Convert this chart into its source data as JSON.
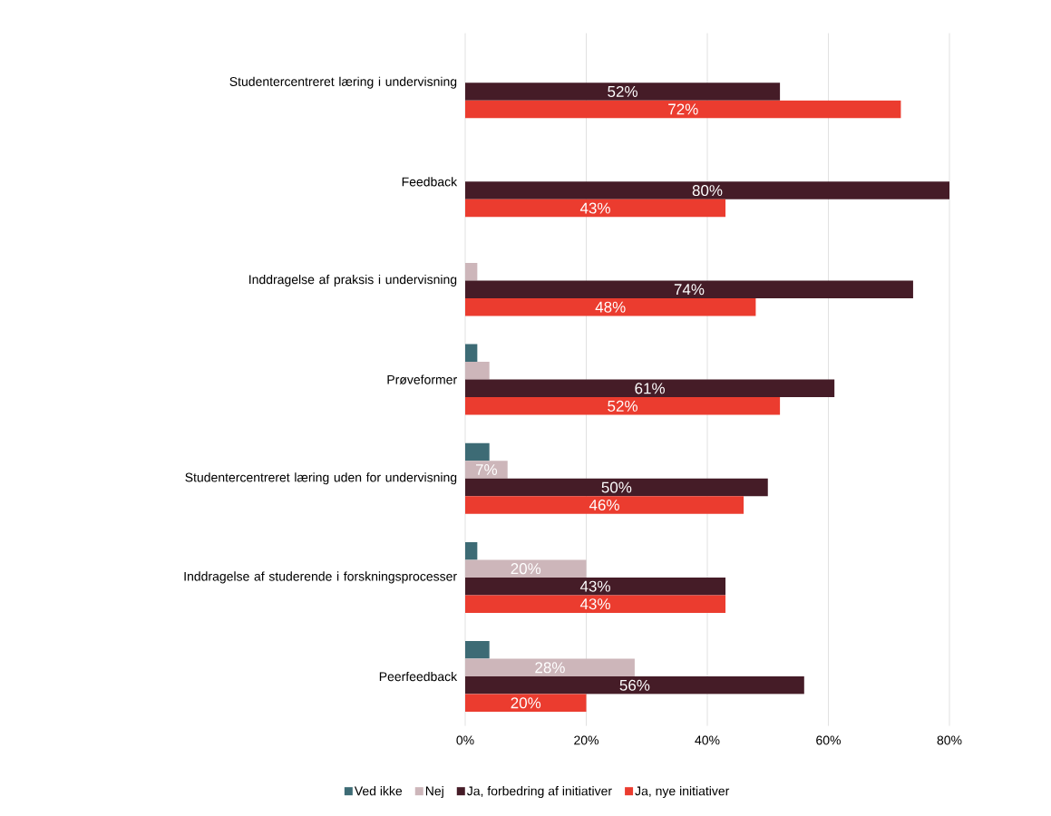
{
  "chart_data": {
    "type": "bar",
    "orientation": "horizontal",
    "categories": [
      "Studentercentreret læring i undervisning",
      "Feedback",
      "Inddragelse af praksis i undervisning",
      "Prøveformer",
      "Studentercentreret læring uden for undervisning",
      "Inddragelse af studerende i forskningsprocesser",
      "Peerfeedback"
    ],
    "series": [
      {
        "name": "Ved ikke",
        "color": "#3d6b75",
        "values": [
          0,
          0,
          0,
          2,
          4,
          2,
          4
        ],
        "value_labels": [
          null,
          null,
          null,
          null,
          null,
          null,
          null
        ]
      },
      {
        "name": "Nej",
        "color": "#cdb6ba",
        "values": [
          0,
          0,
          2,
          4,
          7,
          20,
          28
        ],
        "value_labels": [
          null,
          null,
          null,
          null,
          "7%",
          "20%",
          "28%"
        ]
      },
      {
        "name": "Ja, forbedring af initiativer",
        "color": "#451c27",
        "values": [
          52,
          80,
          74,
          61,
          50,
          43,
          56
        ],
        "value_labels": [
          "52%",
          "80%",
          "74%",
          "61%",
          "50%",
          "43%",
          "56%"
        ]
      },
      {
        "name": "Ja, nye initiativer",
        "color": "#eb3c2f",
        "values": [
          72,
          43,
          48,
          52,
          46,
          43,
          20
        ],
        "value_labels": [
          "72%",
          "43%",
          "48%",
          "52%",
          "46%",
          "43%",
          "20%"
        ]
      }
    ],
    "xlim": [
      0,
      80
    ],
    "xticks": [
      {
        "value": 0,
        "label": "0%"
      },
      {
        "value": 20,
        "label": "20%"
      },
      {
        "value": 40,
        "label": "40%"
      },
      {
        "value": 60,
        "label": "60%"
      },
      {
        "value": 80,
        "label": "80%"
      }
    ],
    "grid": "x",
    "legend": "bottom"
  }
}
